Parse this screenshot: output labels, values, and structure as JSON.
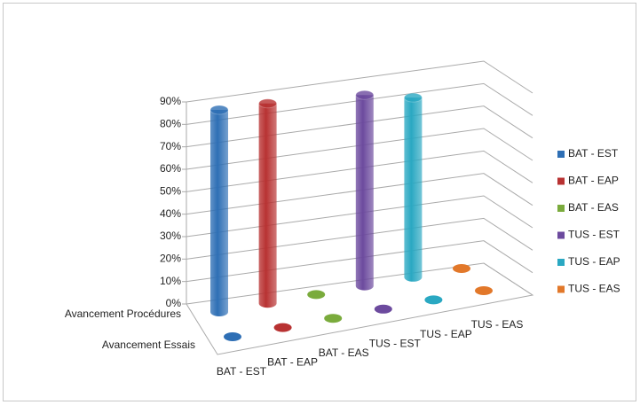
{
  "chart_data": {
    "type": "bar3d",
    "categories": [
      "BAT - EST",
      "BAT - EAP",
      "BAT - EAS",
      "TUS - EST",
      "TUS - EAP",
      "TUS - EAS"
    ],
    "colors": [
      "#2e6fb5",
      "#b83232",
      "#7aab3c",
      "#6c4a9e",
      "#2aa8c2",
      "#e2782a"
    ],
    "series": [
      {
        "name": "Avancement Procédures",
        "values": [
          90,
          89,
          0,
          85,
          80,
          0
        ]
      },
      {
        "name": "Avancement Essais",
        "values": [
          0,
          0,
          0,
          0,
          0,
          0
        ]
      }
    ],
    "ylim": [
      0,
      90
    ],
    "yticks": [
      {
        "value": 0,
        "label": "0%"
      },
      {
        "value": 10,
        "label": "10%"
      },
      {
        "value": 20,
        "label": "20%"
      },
      {
        "value": 30,
        "label": "30%"
      },
      {
        "value": 40,
        "label": "40%"
      },
      {
        "value": 50,
        "label": "50%"
      },
      {
        "value": 60,
        "label": "60%"
      },
      {
        "value": 70,
        "label": "70%"
      },
      {
        "value": 80,
        "label": "80%"
      },
      {
        "value": 90,
        "label": "90%"
      }
    ],
    "grid": true,
    "legend": "right"
  }
}
